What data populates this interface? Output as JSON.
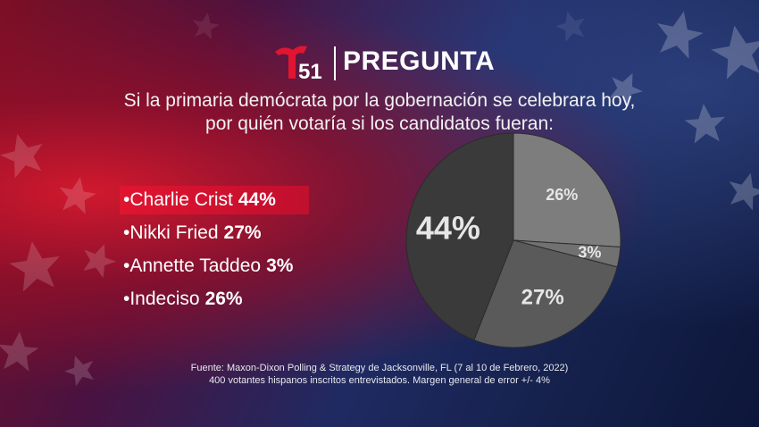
{
  "header": {
    "logo_text": "51",
    "title": "PREGUNTA"
  },
  "question": {
    "line1": "Si la primaria demócrata por la gobernación se celebrara hoy,",
    "line2": "por quién votaría si los candidatos fueran:"
  },
  "colors": {
    "highlight": "#c8102e",
    "slice_crist": "#3a3a3a",
    "slice_fried": "#5a5a5a",
    "slice_taddeo": "#717171",
    "slice_indeciso": "#7d7d7d",
    "label_light": "#e6e6e6"
  },
  "chart_data": {
    "type": "pie",
    "title": "",
    "categories": [
      "Charlie Crist",
      "Nikki Fried",
      "Annette Taddeo",
      "Indeciso"
    ],
    "values": [
      44,
      27,
      3,
      26
    ],
    "value_labels": [
      "44%",
      "27%",
      "3%",
      "26%"
    ],
    "legend": [
      {
        "label": "•Charlie Crist",
        "value": "44%",
        "highlighted": true
      },
      {
        "label": "•Nikki Fried",
        "value": "27%",
        "highlighted": false
      },
      {
        "label": "•Annette Taddeo",
        "value": "3%",
        "highlighted": false
      },
      {
        "label": "•Indeciso",
        "value": "26%",
        "highlighted": false
      }
    ],
    "legend_placement": "left"
  },
  "footnote": {
    "line1": "Fuente: Maxon-Dixon Polling & Strategy de Jacksonville, FL (7 al 10 de Febrero, 2022)",
    "line2": "400 votantes hispanos inscritos entrevistados. Margen general de error +/- 4%"
  }
}
